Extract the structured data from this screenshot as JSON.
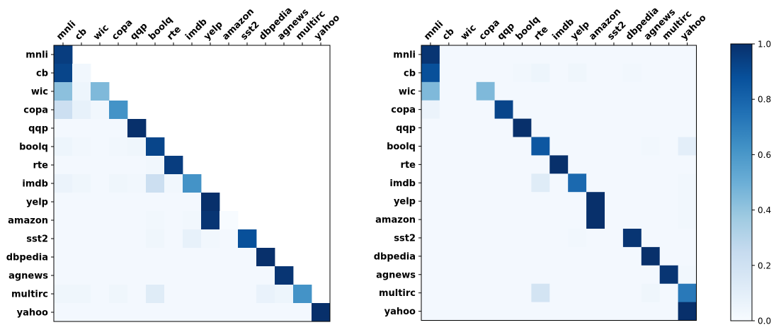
{
  "chart_data": [
    {
      "type": "heatmap",
      "title": "",
      "mask": "lower-triangle",
      "row_labels": [
        "mnli",
        "cb",
        "wic",
        "copa",
        "qqp",
        "boolq",
        "rte",
        "imdb",
        "yelp",
        "amazon",
        "sst2",
        "dbpedia",
        "agnews",
        "multirc",
        "yahoo"
      ],
      "col_labels": [
        "mnli",
        "cb",
        "wic",
        "copa",
        "qqp",
        "boolq",
        "rte",
        "imdb",
        "yelp",
        "amazon",
        "sst2",
        "dbpedia",
        "agnews",
        "multirc",
        "yahoo"
      ],
      "values": [
        [
          0.95
        ],
        [
          0.92,
          0.03
        ],
        [
          0.42,
          0.05,
          0.45
        ],
        [
          0.22,
          0.08,
          0.03,
          0.62
        ],
        [
          0.02,
          0.02,
          0.02,
          0.02,
          1.0
        ],
        [
          0.05,
          0.03,
          0.02,
          0.03,
          0.04,
          0.92
        ],
        [
          0.02,
          0.02,
          0.02,
          0.02,
          0.02,
          0.03,
          0.95
        ],
        [
          0.06,
          0.04,
          0.02,
          0.04,
          0.03,
          0.22,
          0.03,
          0.62
        ],
        [
          0.02,
          0.02,
          0.02,
          0.02,
          0.02,
          0.02,
          0.02,
          0.02,
          1.0
        ],
        [
          0.02,
          0.02,
          0.02,
          0.02,
          0.02,
          0.03,
          0.02,
          0.03,
          0.98,
          0.0
        ],
        [
          0.02,
          0.02,
          0.02,
          0.02,
          0.02,
          0.04,
          0.02,
          0.08,
          0.03,
          0.02,
          0.88
        ],
        [
          0.02,
          0.02,
          0.02,
          0.02,
          0.02,
          0.02,
          0.02,
          0.02,
          0.02,
          0.02,
          0.02,
          1.0
        ],
        [
          0.02,
          0.02,
          0.02,
          0.02,
          0.02,
          0.02,
          0.02,
          0.02,
          0.02,
          0.02,
          0.02,
          0.02,
          0.98
        ],
        [
          0.04,
          0.04,
          0.02,
          0.04,
          0.02,
          0.12,
          0.02,
          0.02,
          0.02,
          0.02,
          0.02,
          0.07,
          0.05,
          0.62
        ],
        [
          0.02,
          0.02,
          0.02,
          0.02,
          0.02,
          0.02,
          0.02,
          0.02,
          0.02,
          0.02,
          0.02,
          0.02,
          0.02,
          0.02,
          1.0
        ]
      ]
    },
    {
      "type": "heatmap",
      "title": "",
      "mask": "none",
      "row_labels": [
        "mnli",
        "cb",
        "wic",
        "copa",
        "qqp",
        "boolq",
        "rte",
        "imdb",
        "yelp",
        "amazon",
        "sst2",
        "dbpedia",
        "agnews",
        "multirc",
        "yahoo"
      ],
      "col_labels": [
        "mnli",
        "cb",
        "wic",
        "copa",
        "qqp",
        "boolq",
        "rte",
        "imdb",
        "yelp",
        "amazon",
        "sst2",
        "dbpedia",
        "agnews",
        "multirc",
        "yahoo"
      ],
      "values": [
        [
          0.98,
          0.02,
          0.02,
          0.02,
          0.02,
          0.02,
          0.02,
          0.02,
          0.02,
          0.02,
          0.02,
          0.02,
          0.02,
          0.02,
          0.02
        ],
        [
          0.88,
          0.02,
          0.02,
          0.02,
          0.02,
          0.03,
          0.05,
          0.02,
          0.04,
          0.02,
          0.02,
          0.03,
          0.02,
          0.02,
          0.02
        ],
        [
          0.45,
          0.02,
          0.02,
          0.45,
          0.02,
          0.02,
          0.02,
          0.02,
          0.02,
          0.02,
          0.02,
          0.02,
          0.02,
          0.02,
          0.02
        ],
        [
          0.06,
          0.02,
          0.02,
          0.02,
          0.92,
          0.02,
          0.02,
          0.02,
          0.02,
          0.02,
          0.02,
          0.02,
          0.02,
          0.02,
          0.02
        ],
        [
          0.02,
          0.02,
          0.02,
          0.02,
          0.02,
          1.0,
          0.02,
          0.02,
          0.02,
          0.02,
          0.02,
          0.02,
          0.02,
          0.02,
          0.02
        ],
        [
          0.02,
          0.02,
          0.02,
          0.02,
          0.02,
          0.02,
          0.85,
          0.02,
          0.02,
          0.02,
          0.02,
          0.02,
          0.03,
          0.02,
          0.1
        ],
        [
          0.02,
          0.02,
          0.02,
          0.02,
          0.02,
          0.02,
          0.02,
          1.0,
          0.02,
          0.02,
          0.02,
          0.02,
          0.02,
          0.02,
          0.02
        ],
        [
          0.02,
          0.02,
          0.02,
          0.02,
          0.02,
          0.02,
          0.12,
          0.02,
          0.78,
          0.02,
          0.02,
          0.02,
          0.02,
          0.02,
          0.03
        ],
        [
          0.02,
          0.02,
          0.02,
          0.02,
          0.02,
          0.02,
          0.02,
          0.02,
          0.02,
          1.0,
          0.02,
          0.02,
          0.02,
          0.02,
          0.03
        ],
        [
          0.02,
          0.02,
          0.02,
          0.02,
          0.02,
          0.02,
          0.02,
          0.02,
          0.02,
          1.0,
          0.02,
          0.02,
          0.02,
          0.02,
          0.03
        ],
        [
          0.02,
          0.02,
          0.02,
          0.02,
          0.02,
          0.02,
          0.02,
          0.02,
          0.03,
          0.02,
          0.02,
          0.98,
          0.02,
          0.02,
          0.02
        ],
        [
          0.02,
          0.02,
          0.02,
          0.02,
          0.02,
          0.02,
          0.02,
          0.02,
          0.02,
          0.02,
          0.02,
          0.02,
          1.0,
          0.02,
          0.02
        ],
        [
          0.02,
          0.02,
          0.02,
          0.02,
          0.02,
          0.02,
          0.02,
          0.02,
          0.02,
          0.02,
          0.02,
          0.02,
          0.02,
          0.98,
          0.03
        ],
        [
          0.02,
          0.02,
          0.02,
          0.02,
          0.02,
          0.02,
          0.18,
          0.02,
          0.02,
          0.02,
          0.02,
          0.02,
          0.04,
          0.02,
          0.72
        ],
        [
          0.02,
          0.02,
          0.02,
          0.02,
          0.02,
          0.02,
          0.02,
          0.02,
          0.02,
          0.02,
          0.02,
          0.02,
          0.02,
          0.02,
          1.0
        ]
      ]
    }
  ],
  "colorbar": {
    "colormap": "Blues",
    "range": [
      0.0,
      1.0
    ],
    "ticks": [
      "0.0",
      "0.2",
      "0.4",
      "0.6",
      "0.8",
      "1.0"
    ],
    "low_color": "#f7fbff",
    "high_color": "#08306b"
  }
}
